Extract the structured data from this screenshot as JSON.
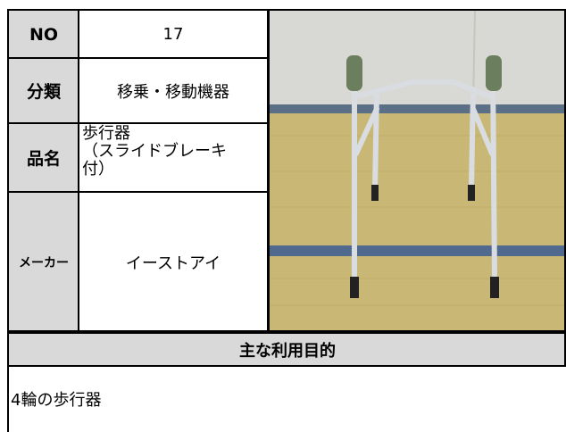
{
  "table": {
    "rows": [
      {
        "label": "NO",
        "value": "17"
      },
      {
        "label": "分類",
        "value": "移乗・移動機器"
      },
      {
        "label": "品名",
        "value": "歩行器\n（スライドブレーキ付）"
      },
      {
        "label": "メーカー",
        "value": "イーストアイ"
      }
    ]
  },
  "purpose": {
    "heading": "主な利用目的",
    "text": "4輪の歩行器"
  }
}
